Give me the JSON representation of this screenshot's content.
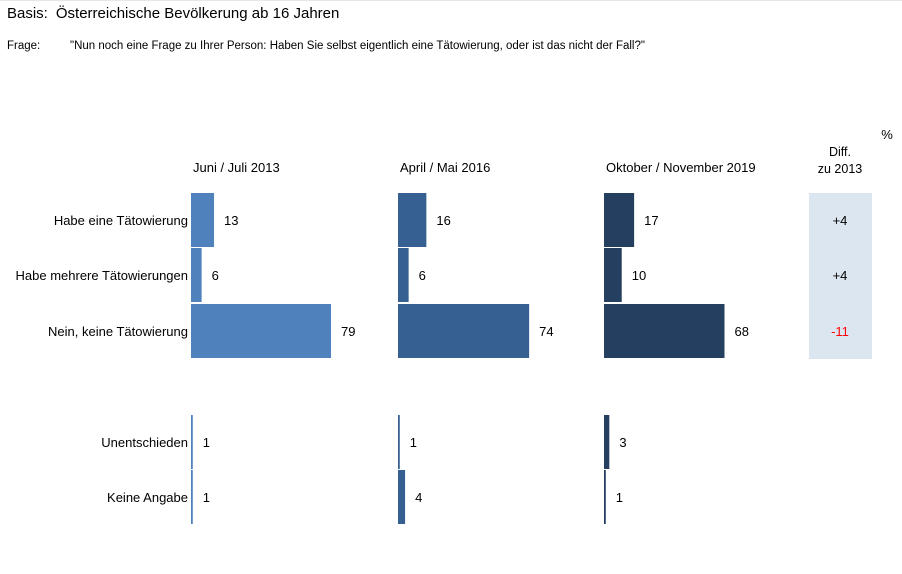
{
  "header": {
    "basis_label": "Basis:",
    "basis_text": "Österreichische Bevölkerung ab 16 Jahren",
    "frage_label": "Frage:",
    "frage_text": "\"Nun noch eine Frage zu Ihrer Person: Haben Sie selbst eigentlich eine Tätowierung, oder ist das nicht der Fall?\""
  },
  "chart_data": {
    "type": "bar",
    "orientation": "horizontal",
    "unit": "%",
    "categories": [
      "Habe eine Tätowierung",
      "Habe mehrere Tätowierungen",
      "Nein, keine Tätowierung",
      "Unentschieden",
      "Keine Angabe"
    ],
    "series": [
      {
        "name": "Juni / Juli 2013",
        "values": [
          13,
          6,
          79,
          1,
          1
        ],
        "color": "#4f81bd"
      },
      {
        "name": "April / Mai 2016",
        "values": [
          16,
          6,
          74,
          1,
          4
        ],
        "color": "#356091"
      },
      {
        "name": "Oktober / November 2019",
        "values": [
          17,
          10,
          68,
          3,
          1
        ],
        "color": "#243f60"
      }
    ],
    "diff": {
      "title_line1": "Diff.",
      "title_line2": "zu 2013",
      "values": [
        "+4",
        "+4",
        "-11"
      ],
      "colors": [
        "#000000",
        "#000000",
        "#ff0000"
      ],
      "background": "#dce6f1"
    },
    "xlim": [
      0,
      100
    ],
    "grid": false,
    "legend": "none"
  }
}
